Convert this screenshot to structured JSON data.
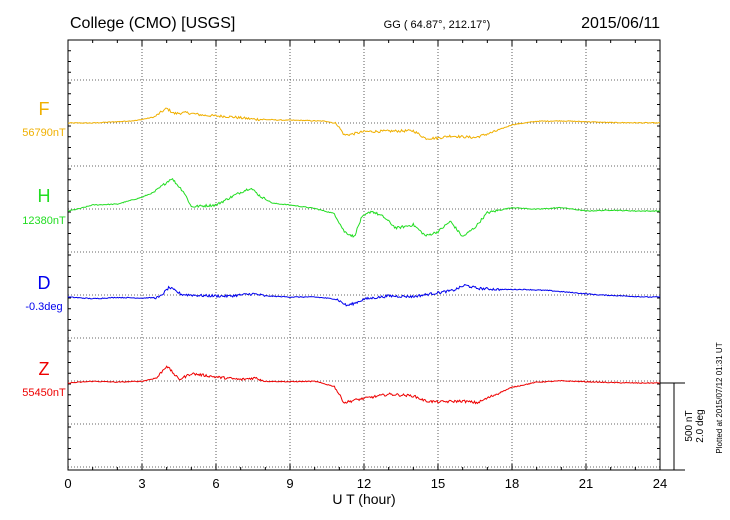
{
  "chart_data": {
    "type": "line",
    "title_left": "College (CMO)  [USGS]",
    "title_center": "GG ( 64.87°, 212.17°)",
    "title_right": "2015/06/11",
    "xlabel": "U T (hour)",
    "xlim": [
      0,
      24
    ],
    "xticks": [
      "0",
      "3",
      "6",
      "9",
      "12",
      "15",
      "18",
      "21",
      "24"
    ],
    "grid": true,
    "scale_text": [
      "500 nT",
      "2.0 deg"
    ],
    "plotted_note": "Plotted at 2015/07/12 01:31  UT",
    "series": [
      {
        "name": "F",
        "baseline_label": "56790nT",
        "color": "#f0b000",
        "units_per_grid": 500,
        "points": [
          [
            0,
            0
          ],
          [
            1,
            0
          ],
          [
            2,
            15
          ],
          [
            2.8,
            30
          ],
          [
            3.5,
            70
          ],
          [
            4.0,
            170
          ],
          [
            4.3,
            110
          ],
          [
            4.8,
            120
          ],
          [
            5.5,
            90
          ],
          [
            6.5,
            75
          ],
          [
            7.5,
            45
          ],
          [
            8.5,
            35
          ],
          [
            9.5,
            30
          ],
          [
            10.5,
            20
          ],
          [
            10.9,
            -10
          ],
          [
            11.2,
            -140
          ],
          [
            11.5,
            -130
          ],
          [
            12,
            -100
          ],
          [
            13,
            -95
          ],
          [
            14,
            -90
          ],
          [
            14.5,
            -180
          ],
          [
            15,
            -175
          ],
          [
            15.5,
            -150
          ],
          [
            16,
            -160
          ],
          [
            16.5,
            -170
          ],
          [
            17.2,
            -110
          ],
          [
            18,
            -20
          ],
          [
            19,
            20
          ],
          [
            20,
            25
          ],
          [
            21,
            15
          ],
          [
            22,
            5
          ],
          [
            24,
            0
          ]
        ]
      },
      {
        "name": "H",
        "baseline_label": "12380nT",
        "color": "#22dd22",
        "units_per_grid": 500,
        "points": [
          [
            0,
            0
          ],
          [
            0.5,
            30
          ],
          [
            1,
            70
          ],
          [
            2,
            80
          ],
          [
            2.5,
            120
          ],
          [
            3,
            160
          ],
          [
            3.5,
            220
          ],
          [
            4.2,
            380
          ],
          [
            4.7,
            220
          ],
          [
            5,
            50
          ],
          [
            6,
            70
          ],
          [
            6.8,
            190
          ],
          [
            7.4,
            270
          ],
          [
            7.8,
            170
          ],
          [
            8.3,
            90
          ],
          [
            9,
            70
          ],
          [
            10,
            30
          ],
          [
            10.8,
            -30
          ],
          [
            11.2,
            -240
          ],
          [
            11.6,
            -300
          ],
          [
            11.9,
            -80
          ],
          [
            12.3,
            0
          ],
          [
            12.8,
            -70
          ],
          [
            13.3,
            -200
          ],
          [
            14,
            -160
          ],
          [
            14.5,
            -290
          ],
          [
            15,
            -240
          ],
          [
            15.5,
            -120
          ],
          [
            16,
            -300
          ],
          [
            16.5,
            -190
          ],
          [
            17,
            -20
          ],
          [
            18,
            40
          ],
          [
            19,
            20
          ],
          [
            20,
            40
          ],
          [
            21,
            0
          ],
          [
            22,
            10
          ],
          [
            23,
            0
          ],
          [
            24,
            0
          ]
        ]
      },
      {
        "name": "D",
        "baseline_label": "-0.3deg",
        "color": "#0000ee",
        "units_per_grid": 2.0,
        "points": [
          [
            0,
            0
          ],
          [
            1,
            -0.08
          ],
          [
            2,
            -0.02
          ],
          [
            3,
            -0.05
          ],
          [
            3.7,
            -0.02
          ],
          [
            4.1,
            0.45
          ],
          [
            4.6,
            0.12
          ],
          [
            5.5,
            0.06
          ],
          [
            6.5,
            0.04
          ],
          [
            7.5,
            0.15
          ],
          [
            8,
            0.05
          ],
          [
            9,
            0
          ],
          [
            10,
            0
          ],
          [
            10.9,
            -0.1
          ],
          [
            11.3,
            -0.4
          ],
          [
            11.6,
            -0.3
          ],
          [
            12,
            -0.1
          ],
          [
            13,
            0.05
          ],
          [
            14,
            0.02
          ],
          [
            15,
            0.2
          ],
          [
            15.6,
            0.3
          ],
          [
            16.1,
            0.55
          ],
          [
            16.6,
            0.4
          ],
          [
            17.5,
            0.35
          ],
          [
            18.5,
            0.35
          ],
          [
            19.5,
            0.3
          ],
          [
            20.5,
            0.2
          ],
          [
            21.5,
            0.1
          ],
          [
            22.5,
            0.05
          ],
          [
            23.5,
            0
          ],
          [
            24,
            0
          ]
        ]
      },
      {
        "name": "Z",
        "baseline_label": "55450nT",
        "color": "#ee0000",
        "units_per_grid": 500,
        "points": [
          [
            0,
            0
          ],
          [
            1,
            20
          ],
          [
            2,
            10
          ],
          [
            3,
            20
          ],
          [
            3.6,
            60
          ],
          [
            4.0,
            200
          ],
          [
            4.5,
            40
          ],
          [
            5,
            110
          ],
          [
            6,
            70
          ],
          [
            7,
            40
          ],
          [
            7.6,
            60
          ],
          [
            8,
            20
          ],
          [
            9,
            15
          ],
          [
            10,
            20
          ],
          [
            10.8,
            -40
          ],
          [
            11.2,
            -230
          ],
          [
            11.6,
            -200
          ],
          [
            12,
            -180
          ],
          [
            13,
            -130
          ],
          [
            14,
            -150
          ],
          [
            14.5,
            -210
          ],
          [
            15,
            -220
          ],
          [
            16,
            -210
          ],
          [
            16.6,
            -230
          ],
          [
            17.2,
            -150
          ],
          [
            18,
            -50
          ],
          [
            19,
            10
          ],
          [
            20,
            25
          ],
          [
            21,
            15
          ],
          [
            22,
            5
          ],
          [
            23,
            0
          ],
          [
            24,
            0
          ]
        ]
      }
    ]
  }
}
